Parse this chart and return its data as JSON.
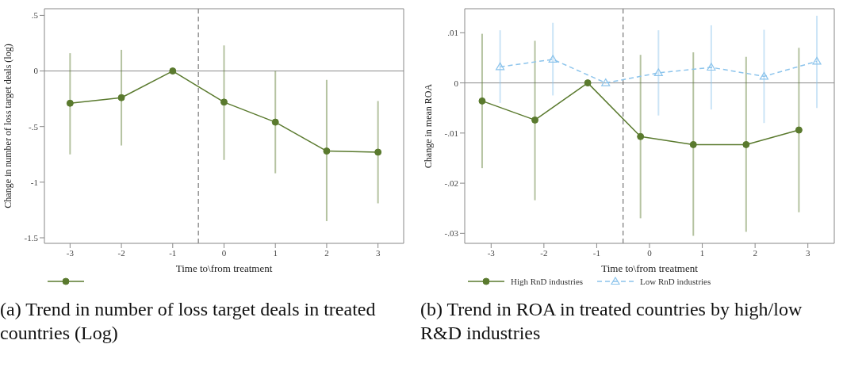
{
  "chart_data": [
    {
      "type": "line",
      "xlabel": "Time to\\from treatment",
      "ylabel": "Change in number of loss target deals (log)",
      "xlim": [
        -3.5,
        3.5
      ],
      "xticks": [
        -3,
        -2,
        -1,
        0,
        1,
        2,
        3
      ],
      "ylim": [
        -1.55,
        0.56
      ],
      "yticks": [
        {
          "value": 0.5,
          "label": ".5"
        },
        0,
        {
          "value": -0.5,
          "label": "-.5"
        },
        -1,
        -1.5
      ],
      "series": [
        {
          "color": "#5a7a2e",
          "marker": "circle",
          "line_style": "solid",
          "x": [
            -3,
            -2,
            -1,
            0,
            1,
            2,
            3
          ],
          "values": [
            -0.29,
            -0.24,
            0,
            -0.28,
            -0.46,
            -0.72,
            -0.73
          ],
          "errors": [
            [
              -0.75,
              0.16
            ],
            [
              -0.67,
              0.19
            ],
            null,
            [
              -0.8,
              0.23
            ],
            [
              -0.92,
              0
            ],
            [
              -1.35,
              -0.08
            ],
            [
              -1.19,
              -0.27
            ]
          ]
        }
      ],
      "ref_lines": [
        {
          "axis": "y",
          "value": 0,
          "color": "#8a8a8a",
          "line_style": "solid"
        },
        {
          "axis": "x",
          "value": -0.5,
          "color": "#777777",
          "line_style": "dashed"
        }
      ],
      "annotations": [
        "(a) Trend in number of loss target deals in treated countries (Log)"
      ]
    },
    {
      "type": "line",
      "xlabel": "Time to\\from treatment",
      "ylabel": "Change in mean ROA",
      "xlim": [
        -3.5,
        3.5
      ],
      "xticks": [
        -3,
        -2,
        -1,
        0,
        1,
        2,
        3
      ],
      "ylim": [
        -0.032,
        0.0148
      ],
      "yticks": [
        {
          "value": 0.01,
          "label": ".01"
        },
        0,
        {
          "value": -0.01,
          "label": "-.01"
        },
        {
          "value": -0.02,
          "label": "-.02"
        },
        {
          "value": -0.03,
          "label": "-.03"
        }
      ],
      "legend": "bottom",
      "series": [
        {
          "name": "High RnD industries",
          "color": "#5a7a2e",
          "marker": "circle",
          "line_style": "solid",
          "x": [
            -3.17,
            -2.17,
            -1.17,
            -0.17,
            0.83,
            1.83,
            2.83
          ],
          "values": [
            -0.0036,
            -0.0074,
            0,
            -0.0107,
            -0.0123,
            -0.0123,
            -0.0094
          ],
          "errors": [
            [
              -0.017,
              0.0098
            ],
            [
              -0.0234,
              0.0084
            ],
            null,
            [
              -0.027,
              0.0056
            ],
            [
              -0.0305,
              0.0061
            ],
            [
              -0.0297,
              0.0052
            ],
            [
              -0.0258,
              0.007
            ]
          ]
        },
        {
          "name": "Low RnD industries",
          "color": "#8cc4ec",
          "marker": "triangle",
          "line_style": "dashed",
          "x": [
            -2.83,
            -1.83,
            -0.83,
            0.17,
            1.17,
            2.17,
            3.17
          ],
          "values": [
            0.0032,
            0.0047,
            0,
            0.002,
            0.0031,
            0.0013,
            0.0043
          ],
          "errors": [
            [
              -0.004,
              0.0105
            ],
            [
              -0.0025,
              0.012
            ],
            null,
            [
              -0.0065,
              0.0105
            ],
            [
              -0.0053,
              0.0115
            ],
            [
              -0.008,
              0.0106
            ],
            [
              -0.005,
              0.0134
            ]
          ]
        }
      ],
      "ref_lines": [
        {
          "axis": "y",
          "value": 0,
          "color": "#8a8a8a",
          "line_style": "solid"
        },
        {
          "axis": "x",
          "value": -0.5,
          "color": "#777777",
          "line_style": "dashed"
        }
      ],
      "annotations": [
        "(b) Trend in ROA in treated countries by high/low R&D industries"
      ]
    }
  ]
}
